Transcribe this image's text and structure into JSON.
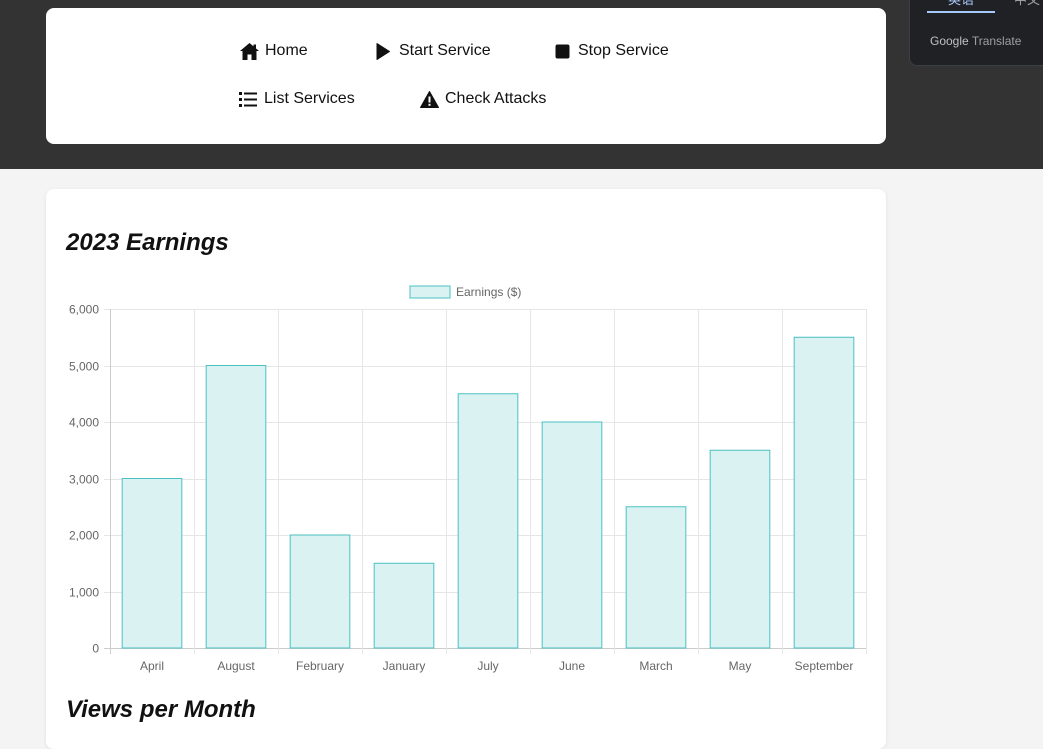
{
  "nav": {
    "items": [
      {
        "label": "Home",
        "icon": "home-icon"
      },
      {
        "label": "Start Service",
        "icon": "play-icon"
      },
      {
        "label": "Stop Service",
        "icon": "stop-icon"
      },
      {
        "label": "List Services",
        "icon": "list-icon"
      },
      {
        "label": "Check Attacks",
        "icon": "warning-icon"
      }
    ]
  },
  "translate": {
    "active_tab": "英语",
    "other_tab": "中文",
    "brand_google": "Google",
    "brand_translate": "Translate"
  },
  "sections": {
    "earnings_title": "2023 Earnings",
    "views_title": "Views per Month"
  },
  "colors": {
    "topbar": "#333333",
    "bar_fill": "#dbf2f2",
    "bar_border": "#4bc0c0"
  },
  "chart_data": {
    "type": "bar",
    "categories": [
      "April",
      "August",
      "February",
      "January",
      "July",
      "June",
      "March",
      "May",
      "September"
    ],
    "series": [
      {
        "name": "Earnings ($)",
        "values": [
          3000,
          5000,
          2000,
          1500,
          4500,
          4000,
          2500,
          3500,
          5500
        ]
      }
    ],
    "ylim": [
      0,
      6000
    ],
    "yticks": [
      0,
      1000,
      2000,
      3000,
      4000,
      5000,
      6000
    ],
    "ytick_labels": [
      "0",
      "1,000",
      "2,000",
      "3,000",
      "4,000",
      "5,000",
      "6,000"
    ],
    "grid": true,
    "legend_position": "top-center"
  }
}
